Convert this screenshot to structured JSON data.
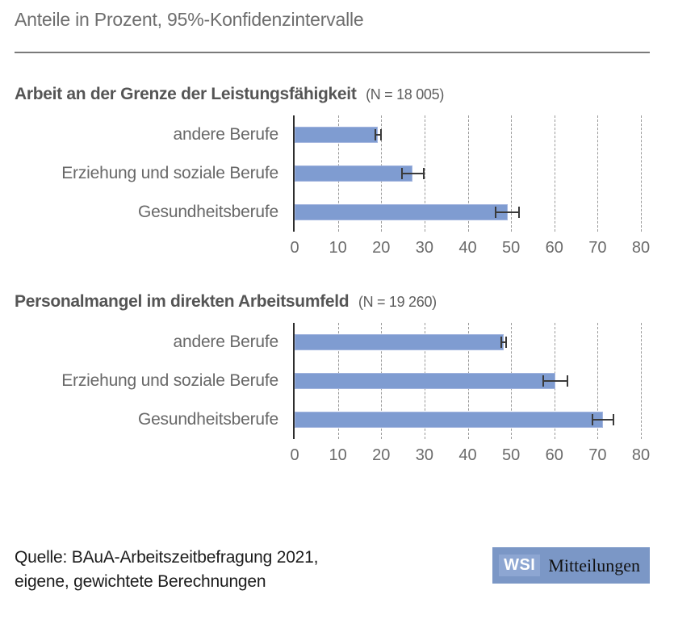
{
  "header": {
    "title": "Anteile in Prozent, 95%-Konfidenzintervalle"
  },
  "chart_data": [
    {
      "type": "bar",
      "orientation": "horizontal",
      "title": "Arbeit an der Grenze der Leistungsfähigkeit",
      "n_label": "(N = 18 005)",
      "categories": [
        "andere Berufe",
        "Erziehung und soziale Berufe",
        "Gesundheitsberufe"
      ],
      "values": [
        19.3,
        27.2,
        49.2
      ],
      "ci_low": [
        18.4,
        24.7,
        46.3
      ],
      "ci_high": [
        20.1,
        30.1,
        52.1
      ],
      "xlim": [
        0,
        80
      ],
      "xticks": [
        0,
        10,
        20,
        30,
        40,
        50,
        60,
        70,
        80
      ],
      "xlabel": "",
      "ylabel": "",
      "grid": "vertical-dashed",
      "legend": "none"
    },
    {
      "type": "bar",
      "orientation": "horizontal",
      "title": "Personalmangel im direkten Arbeitsumfeld",
      "n_label": "(N = 19 260)",
      "categories": [
        "andere Berufe",
        "Erziehung und soziale Berufe",
        "Gesundheitsberufe"
      ],
      "values": [
        48.3,
        60.2,
        71.2
      ],
      "ci_low": [
        47.5,
        57.2,
        68.6
      ],
      "ci_high": [
        49.1,
        63.2,
        73.9
      ],
      "xlim": [
        0,
        80
      ],
      "xticks": [
        0,
        10,
        20,
        30,
        40,
        50,
        60,
        70,
        80
      ],
      "xlabel": "",
      "ylabel": "",
      "grid": "vertical-dashed",
      "legend": "none"
    }
  ],
  "footer": {
    "source_line1": "Quelle: BAuA-Arbeitszeitbefragung 2021,",
    "source_line2": "eigene, gewichtete Berechnungen",
    "logo": {
      "acronym": "WSI",
      "name": "Mitteilungen"
    }
  },
  "colors": {
    "bar_fill": "#7f9cd1",
    "bar_edge": "#a3b5de",
    "error_bar": "#3a3a3a",
    "gridline": "#9a9a9a",
    "axis_line": "#2d2d2d",
    "title_gray": "#6e6e6e",
    "heading_gray": "#555555",
    "label_gray": "#686868",
    "footer_text": "#1c1c1c",
    "logo_blue": "#7b97c6",
    "logo_wsi_blue": "#8da6d2"
  }
}
